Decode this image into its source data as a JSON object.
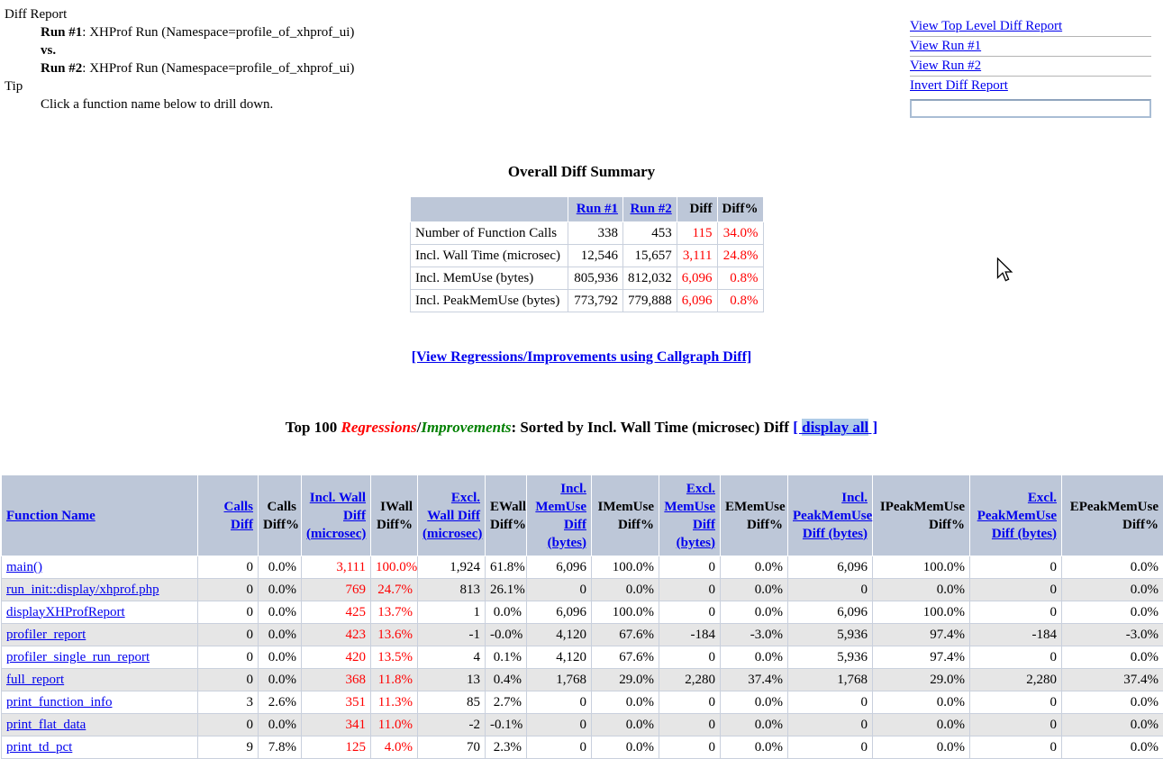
{
  "report_info": {
    "title": "Diff Report",
    "run1_label": "Run #1",
    "run1_text": ": XHProf Run (Namespace=profile_of_xhprof_ui)",
    "vs_text": "vs.",
    "run2_label": "Run #2",
    "run2_text": ": XHProf Run (Namespace=profile_of_xhprof_ui)",
    "tip_title": "Tip",
    "tip_text": "Click a function name below to drill down."
  },
  "nav": {
    "links": [
      "View Top Level Diff Report",
      "View Run #1",
      "View Run #2",
      "Invert Diff Report"
    ],
    "input_value": ""
  },
  "summary_table": {
    "title": "Overall Diff Summary",
    "col_headers": [
      "",
      "Run #1",
      "Run #2",
      "Diff",
      "Diff%"
    ],
    "link_headers": [
      "Run #1",
      "Run #2"
    ],
    "rows": [
      {
        "label": "Number of Function Calls",
        "run1": "338",
        "run2": "453",
        "diff": "115",
        "diff_pct": "34.0%"
      },
      {
        "label": "Incl. Wall Time (microsec)",
        "run1": "12,546",
        "run2": "15,657",
        "diff": "3,111",
        "diff_pct": "24.8%"
      },
      {
        "label": "Incl. MemUse (bytes)",
        "run1": "805,936",
        "run2": "812,032",
        "diff": "6,096",
        "diff_pct": "0.8%"
      },
      {
        "label": "Incl. PeakMemUse (bytes)",
        "run1": "773,792",
        "run2": "779,888",
        "diff": "6,096",
        "diff_pct": "0.8%"
      }
    ]
  },
  "callgraph_link": {
    "label": "[View Regressions/Improvements using Callgraph Diff]"
  },
  "top100_heading": {
    "prefix": "Top 100 ",
    "regressions": "Regressions",
    "separator": "/",
    "improvements": "Improvements",
    "suffix": ": Sorted by Incl. Wall Time (microsec) Diff ",
    "display_all_open": "[ ",
    "display_all_label": "display all",
    "display_all_close": " ]"
  },
  "function_table": {
    "columns": [
      {
        "label": "Function Name",
        "link": true
      },
      {
        "label": "Calls Diff",
        "link": true
      },
      {
        "label": "Calls Diff%",
        "link": false
      },
      {
        "label": "Incl. Wall Diff (microsec)",
        "link": true
      },
      {
        "label": "IWall Diff%",
        "link": false
      },
      {
        "label": "Excl. Wall Diff (microsec)",
        "link": true
      },
      {
        "label": "EWall Diff%",
        "link": false
      },
      {
        "label": "Incl. MemUse Diff (bytes)",
        "link": true
      },
      {
        "label": "IMemUse Diff%",
        "link": false
      },
      {
        "label": "Excl. MemUse Diff (bytes)",
        "link": true
      },
      {
        "label": "EMemUse Diff%",
        "link": false
      },
      {
        "label": "Incl. PeakMemUse Diff (bytes)",
        "link": true
      },
      {
        "label": "IPeakMemUse Diff%",
        "link": false
      },
      {
        "label": "Excl. PeakMemUse Diff (bytes)",
        "link": true
      },
      {
        "label": "EPeakMemUse Diff%",
        "link": false
      }
    ],
    "red_value_columns": [
      2,
      3
    ],
    "rows": [
      {
        "name": "main()",
        "values": [
          "0",
          "0.0%",
          "3,111",
          "100.0%",
          "1,924",
          "61.8%",
          "6,096",
          "100.0%",
          "0",
          "0.0%",
          "6,096",
          "100.0%",
          "0",
          "0.0%"
        ]
      },
      {
        "name": "run_init::display/xhprof.php",
        "values": [
          "0",
          "0.0%",
          "769",
          "24.7%",
          "813",
          "26.1%",
          "0",
          "0.0%",
          "0",
          "0.0%",
          "0",
          "0.0%",
          "0",
          "0.0%"
        ]
      },
      {
        "name": "displayXHProfReport",
        "values": [
          "0",
          "0.0%",
          "425",
          "13.7%",
          "1",
          "0.0%",
          "6,096",
          "100.0%",
          "0",
          "0.0%",
          "6,096",
          "100.0%",
          "0",
          "0.0%"
        ]
      },
      {
        "name": "profiler_report",
        "values": [
          "0",
          "0.0%",
          "423",
          "13.6%",
          "-1",
          "-0.0%",
          "4,120",
          "67.6%",
          "-184",
          "-3.0%",
          "5,936",
          "97.4%",
          "-184",
          "-3.0%"
        ]
      },
      {
        "name": "profiler_single_run_report",
        "values": [
          "0",
          "0.0%",
          "420",
          "13.5%",
          "4",
          "0.1%",
          "4,120",
          "67.6%",
          "0",
          "0.0%",
          "5,936",
          "97.4%",
          "0",
          "0.0%"
        ]
      },
      {
        "name": "full_report",
        "values": [
          "0",
          "0.0%",
          "368",
          "11.8%",
          "13",
          "0.4%",
          "1,768",
          "29.0%",
          "2,280",
          "37.4%",
          "1,768",
          "29.0%",
          "2,280",
          "37.4%"
        ]
      },
      {
        "name": "print_function_info",
        "values": [
          "3",
          "2.6%",
          "351",
          "11.3%",
          "85",
          "2.7%",
          "0",
          "0.0%",
          "0",
          "0.0%",
          "0",
          "0.0%",
          "0",
          "0.0%"
        ]
      },
      {
        "name": "print_flat_data",
        "values": [
          "0",
          "0.0%",
          "341",
          "11.0%",
          "-2",
          "-0.1%",
          "0",
          "0.0%",
          "0",
          "0.0%",
          "0",
          "0.0%",
          "0",
          "0.0%"
        ]
      },
      {
        "name": "print_td_pct",
        "values": [
          "9",
          "7.8%",
          "125",
          "4.0%",
          "70",
          "2.3%",
          "0",
          "0.0%",
          "0",
          "0.0%",
          "0",
          "0.0%",
          "0",
          "0.0%"
        ]
      }
    ]
  },
  "colors": {
    "link_blue": "#0000EE",
    "regression_red": "#FF0000",
    "improvement_green": "#008000",
    "table_header_bg": "#BDC7D8",
    "stripe_bg": "#E6E6E6",
    "display_all_highlight": "#AECBE8"
  }
}
